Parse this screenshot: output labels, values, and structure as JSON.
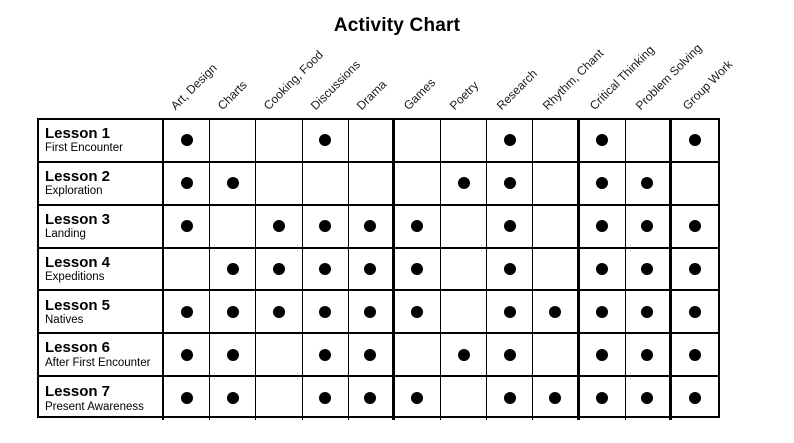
{
  "title": "Activity Chart",
  "dot_color": "#000000",
  "chart_data": {
    "type": "table",
    "title": "Activity Chart",
    "marker": "filled-dot",
    "columns": [
      "Art, Design",
      "Charts",
      "Cooking, Food",
      "Discussions",
      "Drama",
      "Games",
      "Poetry",
      "Research",
      "Rhythm, Chant",
      "Critical Thinking",
      "Problem Solving",
      "Group Work"
    ],
    "rows": [
      {
        "label": "Lesson 1",
        "sublabel": "First Encounter",
        "values": [
          1,
          0,
          0,
          1,
          0,
          0,
          0,
          1,
          0,
          1,
          0,
          1
        ]
      },
      {
        "label": "Lesson 2",
        "sublabel": "Exploration",
        "values": [
          1,
          1,
          0,
          0,
          0,
          0,
          1,
          1,
          0,
          1,
          1,
          0
        ]
      },
      {
        "label": "Lesson 3",
        "sublabel": "Landing",
        "values": [
          1,
          0,
          1,
          1,
          1,
          1,
          0,
          1,
          0,
          1,
          1,
          1
        ]
      },
      {
        "label": "Lesson 4",
        "sublabel": "Expeditions",
        "values": [
          0,
          1,
          1,
          1,
          1,
          1,
          0,
          1,
          0,
          1,
          1,
          1
        ]
      },
      {
        "label": "Lesson 5",
        "sublabel": "Natives",
        "values": [
          1,
          1,
          1,
          1,
          1,
          1,
          0,
          1,
          1,
          1,
          1,
          1
        ]
      },
      {
        "label": "Lesson 6",
        "sublabel": "After First Encounter",
        "values": [
          1,
          1,
          0,
          1,
          1,
          0,
          1,
          1,
          0,
          1,
          1,
          1
        ]
      },
      {
        "label": "Lesson 7",
        "sublabel": "Present Awareness",
        "values": [
          1,
          1,
          0,
          1,
          1,
          1,
          0,
          1,
          1,
          1,
          1,
          1
        ]
      }
    ]
  }
}
